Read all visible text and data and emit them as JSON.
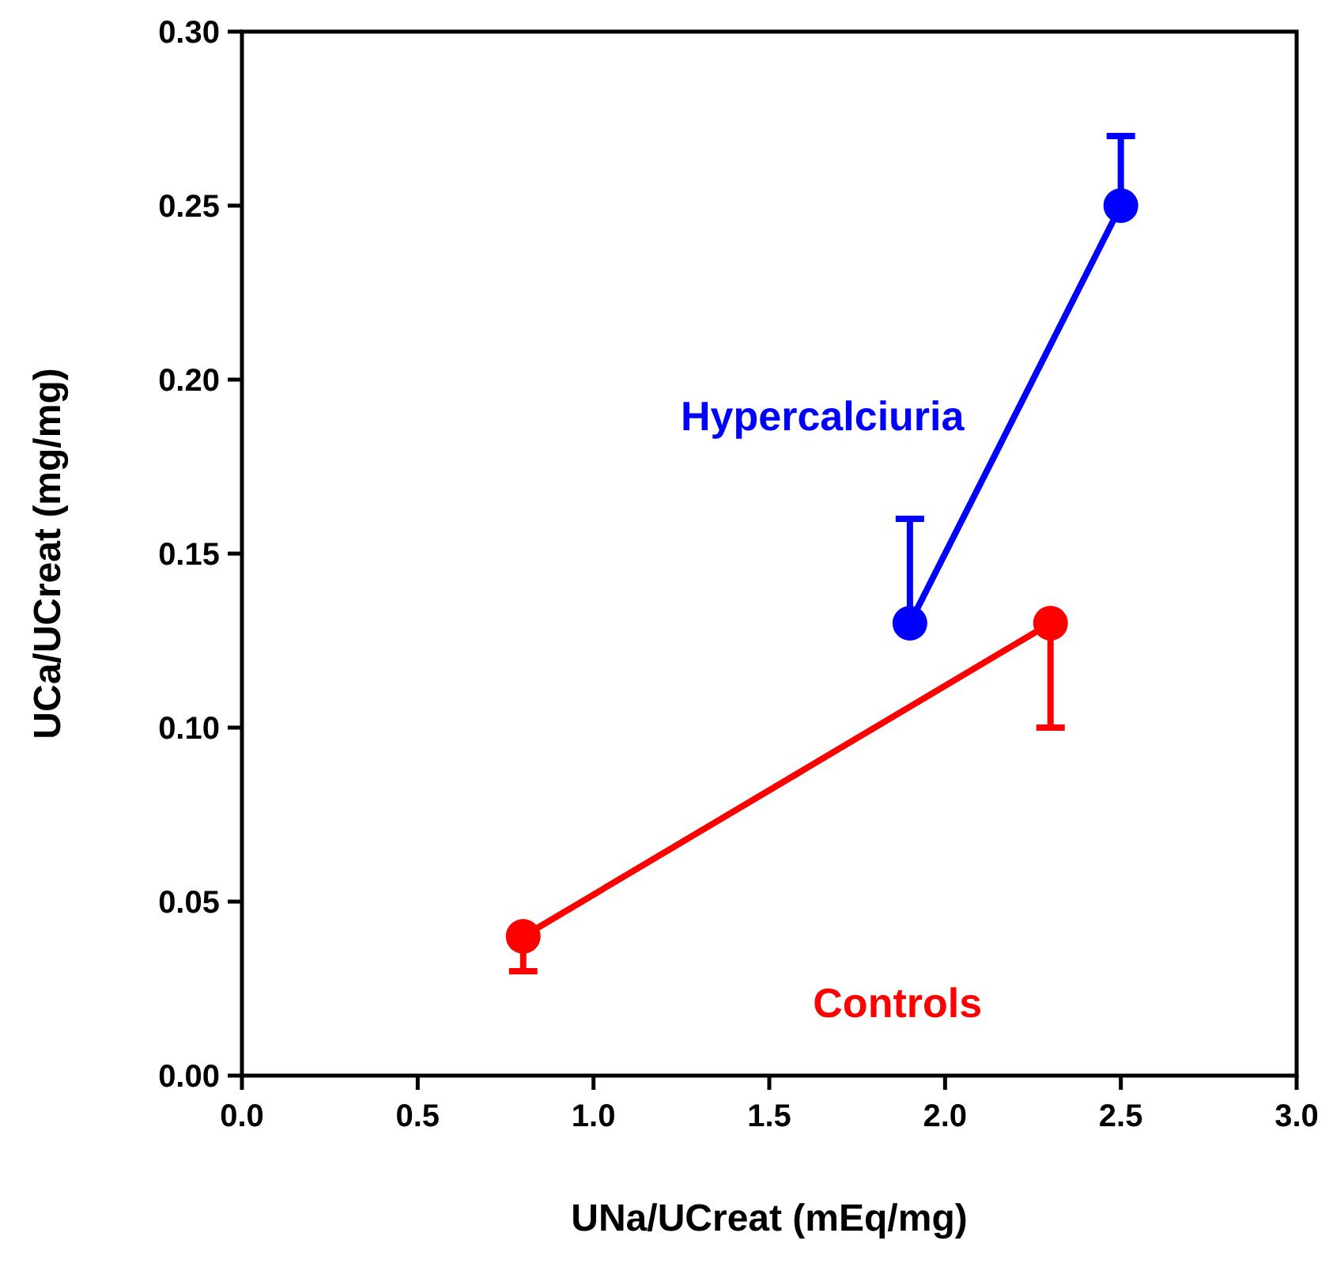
{
  "chart_data": {
    "type": "line",
    "xlabel": "UNa/UCreat (mEq/mg)",
    "ylabel": "UCa/UCreat (mg/mg)",
    "xlim": [
      0,
      3.0
    ],
    "xticks": [
      {
        "value": 0,
        "label": "0.0"
      },
      {
        "value": 0.5,
        "label": "0.5"
      },
      {
        "value": 1,
        "label": "1.0"
      },
      {
        "value": 1.5,
        "label": "1.5"
      },
      {
        "value": 2,
        "label": "2.0"
      },
      {
        "value": 2.5,
        "label": "2.5"
      },
      {
        "value": 3,
        "label": "3.0"
      }
    ],
    "ylim": [
      0,
      0.3
    ],
    "yticks": [
      {
        "value": 0,
        "label": "0.00"
      },
      {
        "value": 0.05,
        "label": "0.05"
      },
      {
        "value": 0.1,
        "label": "0.10"
      },
      {
        "value": 0.15,
        "label": "0.15"
      },
      {
        "value": 0.2,
        "label": "0.20"
      },
      {
        "value": 0.25,
        "label": "0.25"
      },
      {
        "value": 0.3,
        "label": "0.30"
      }
    ],
    "grid": false,
    "legend": false,
    "marker": "circle",
    "line_style": "solid",
    "series": [
      {
        "name": "Hypercalciuria",
        "color": "#0000ff",
        "x": [
          1.9,
          2.5
        ],
        "values": [
          0.13,
          0.25
        ],
        "errors": [
          [
            0.13,
            0.16
          ],
          [
            0.25,
            0.27
          ]
        ]
      },
      {
        "name": "Controls",
        "color": "#ff0000",
        "x": [
          0.8,
          2.3
        ],
        "values": [
          0.04,
          0.13
        ],
        "errors": [
          [
            0.03,
            0.04
          ],
          [
            0.1,
            0.13
          ]
        ]
      }
    ]
  }
}
